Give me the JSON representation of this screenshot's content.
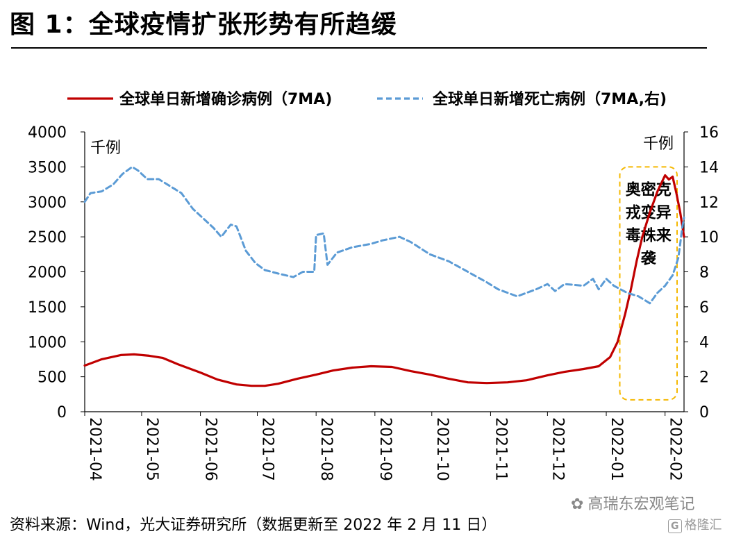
{
  "figure": {
    "title": "图 1：全球疫情扩张形势有所趋缓",
    "source": "资料来源：Wind，光大证券研究所（数据更新至 2022 年 2 月 11 日）",
    "watermark": "高瑞东宏观笔记",
    "watermark_icon": "wechat-icon",
    "corner_logo": "格隆汇",
    "corner_logo_mark": "G"
  },
  "chart_data": {
    "type": "line",
    "title": "",
    "left_axis": {
      "label": "千例",
      "ylim": [
        0,
        4000
      ],
      "ticks": [
        0,
        500,
        1000,
        1500,
        2000,
        2500,
        3000,
        3500,
        4000
      ]
    },
    "right_axis": {
      "label": "千例",
      "ylim": [
        0,
        16
      ],
      "ticks": [
        0,
        2,
        4,
        6,
        8,
        10,
        12,
        14,
        16
      ]
    },
    "x_axis": {
      "range": [
        "2021-04-01",
        "2022-02-11"
      ],
      "ticks": [
        "2021-04",
        "2021-05",
        "2021-06",
        "2021-07",
        "2021-08",
        "2021-09",
        "2021-10",
        "2021-11",
        "2021-12",
        "2022-01",
        "2022-02"
      ]
    },
    "legend_position": "top",
    "series": [
      {
        "name": "全球单日新增确诊病例（7MA)",
        "axis": "left",
        "color": "#c00000",
        "style": "solid",
        "points": [
          [
            "2021-04-01",
            660
          ],
          [
            "2021-04-10",
            750
          ],
          [
            "2021-04-20",
            810
          ],
          [
            "2021-04-27",
            820
          ],
          [
            "2021-05-05",
            800
          ],
          [
            "2021-05-12",
            770
          ],
          [
            "2021-05-20",
            680
          ],
          [
            "2021-06-01",
            560
          ],
          [
            "2021-06-10",
            460
          ],
          [
            "2021-06-20",
            390
          ],
          [
            "2021-06-28",
            370
          ],
          [
            "2021-07-05",
            370
          ],
          [
            "2021-07-12",
            400
          ],
          [
            "2021-07-22",
            470
          ],
          [
            "2021-08-01",
            530
          ],
          [
            "2021-08-10",
            590
          ],
          [
            "2021-08-20",
            630
          ],
          [
            "2021-08-30",
            650
          ],
          [
            "2021-09-10",
            640
          ],
          [
            "2021-09-20",
            580
          ],
          [
            "2021-09-30",
            530
          ],
          [
            "2021-10-10",
            470
          ],
          [
            "2021-10-20",
            420
          ],
          [
            "2021-10-30",
            410
          ],
          [
            "2021-11-10",
            420
          ],
          [
            "2021-11-20",
            450
          ],
          [
            "2021-12-01",
            520
          ],
          [
            "2021-12-10",
            570
          ],
          [
            "2021-12-20",
            610
          ],
          [
            "2021-12-28",
            650
          ],
          [
            "2022-01-03",
            780
          ],
          [
            "2022-01-07",
            1000
          ],
          [
            "2022-01-11",
            1400
          ],
          [
            "2022-01-14",
            1750
          ],
          [
            "2022-01-17",
            2150
          ],
          [
            "2022-01-20",
            2500
          ],
          [
            "2022-01-24",
            2850
          ],
          [
            "2022-01-28",
            3150
          ],
          [
            "2022-02-01",
            3380
          ],
          [
            "2022-02-03",
            3320
          ],
          [
            "2022-02-05",
            3360
          ],
          [
            "2022-02-07",
            3120
          ],
          [
            "2022-02-09",
            2850
          ],
          [
            "2022-02-11",
            2500
          ]
        ]
      },
      {
        "name": "全球单日新增死亡病例（7MA,右)",
        "axis": "right",
        "color": "#5b9bd5",
        "style": "dashed",
        "points": [
          [
            "2021-04-01",
            12.0
          ],
          [
            "2021-04-04",
            12.5
          ],
          [
            "2021-04-10",
            12.6
          ],
          [
            "2021-04-16",
            13.0
          ],
          [
            "2021-04-21",
            13.6
          ],
          [
            "2021-04-26",
            14.0
          ],
          [
            "2021-04-29",
            13.8
          ],
          [
            "2021-05-04",
            13.3
          ],
          [
            "2021-05-10",
            13.3
          ],
          [
            "2021-05-16",
            12.9
          ],
          [
            "2021-05-22",
            12.5
          ],
          [
            "2021-05-28",
            11.6
          ],
          [
            "2021-06-03",
            11.0
          ],
          [
            "2021-06-08",
            10.5
          ],
          [
            "2021-06-12",
            10.0
          ],
          [
            "2021-06-17",
            10.7
          ],
          [
            "2021-06-20",
            10.6
          ],
          [
            "2021-06-25",
            9.2
          ],
          [
            "2021-06-30",
            8.5
          ],
          [
            "2021-07-05",
            8.1
          ],
          [
            "2021-07-12",
            7.9
          ],
          [
            "2021-07-20",
            7.7
          ],
          [
            "2021-07-25",
            8.0
          ],
          [
            "2021-07-31",
            8.0
          ],
          [
            "2021-08-01",
            10.1
          ],
          [
            "2021-08-05",
            10.2
          ],
          [
            "2021-08-07",
            8.4
          ],
          [
            "2021-08-12",
            9.1
          ],
          [
            "2021-08-20",
            9.4
          ],
          [
            "2021-08-30",
            9.6
          ],
          [
            "2021-09-05",
            9.8
          ],
          [
            "2021-09-14",
            10.0
          ],
          [
            "2021-09-20",
            9.7
          ],
          [
            "2021-09-30",
            9.0
          ],
          [
            "2021-10-10",
            8.6
          ],
          [
            "2021-10-20",
            8.0
          ],
          [
            "2021-10-30",
            7.4
          ],
          [
            "2021-11-05",
            7.0
          ],
          [
            "2021-11-15",
            6.6
          ],
          [
            "2021-11-25",
            7.0
          ],
          [
            "2021-12-01",
            7.3
          ],
          [
            "2021-12-05",
            6.9
          ],
          [
            "2021-12-10",
            7.3
          ],
          [
            "2021-12-20",
            7.2
          ],
          [
            "2021-12-25",
            7.6
          ],
          [
            "2021-12-28",
            7.0
          ],
          [
            "2022-01-01",
            7.6
          ],
          [
            "2022-01-05",
            7.2
          ],
          [
            "2022-01-12",
            6.8
          ],
          [
            "2022-01-18",
            6.6
          ],
          [
            "2022-01-24",
            6.2
          ],
          [
            "2022-01-28",
            6.8
          ],
          [
            "2022-02-01",
            7.2
          ],
          [
            "2022-02-05",
            7.8
          ],
          [
            "2022-02-08",
            8.8
          ],
          [
            "2022-02-09",
            9.6
          ],
          [
            "2022-02-10",
            10.5
          ],
          [
            "2022-02-11",
            11.1
          ]
        ]
      }
    ],
    "annotation": {
      "text_lines": [
        "奥密克",
        "戎变异",
        "毒株来",
        "袭"
      ],
      "box_color": "#f5b800",
      "box_style": "dashed",
      "x_range": [
        "2022-01-03",
        "2022-02-11"
      ],
      "y_range": [
        170,
        3500
      ]
    }
  }
}
